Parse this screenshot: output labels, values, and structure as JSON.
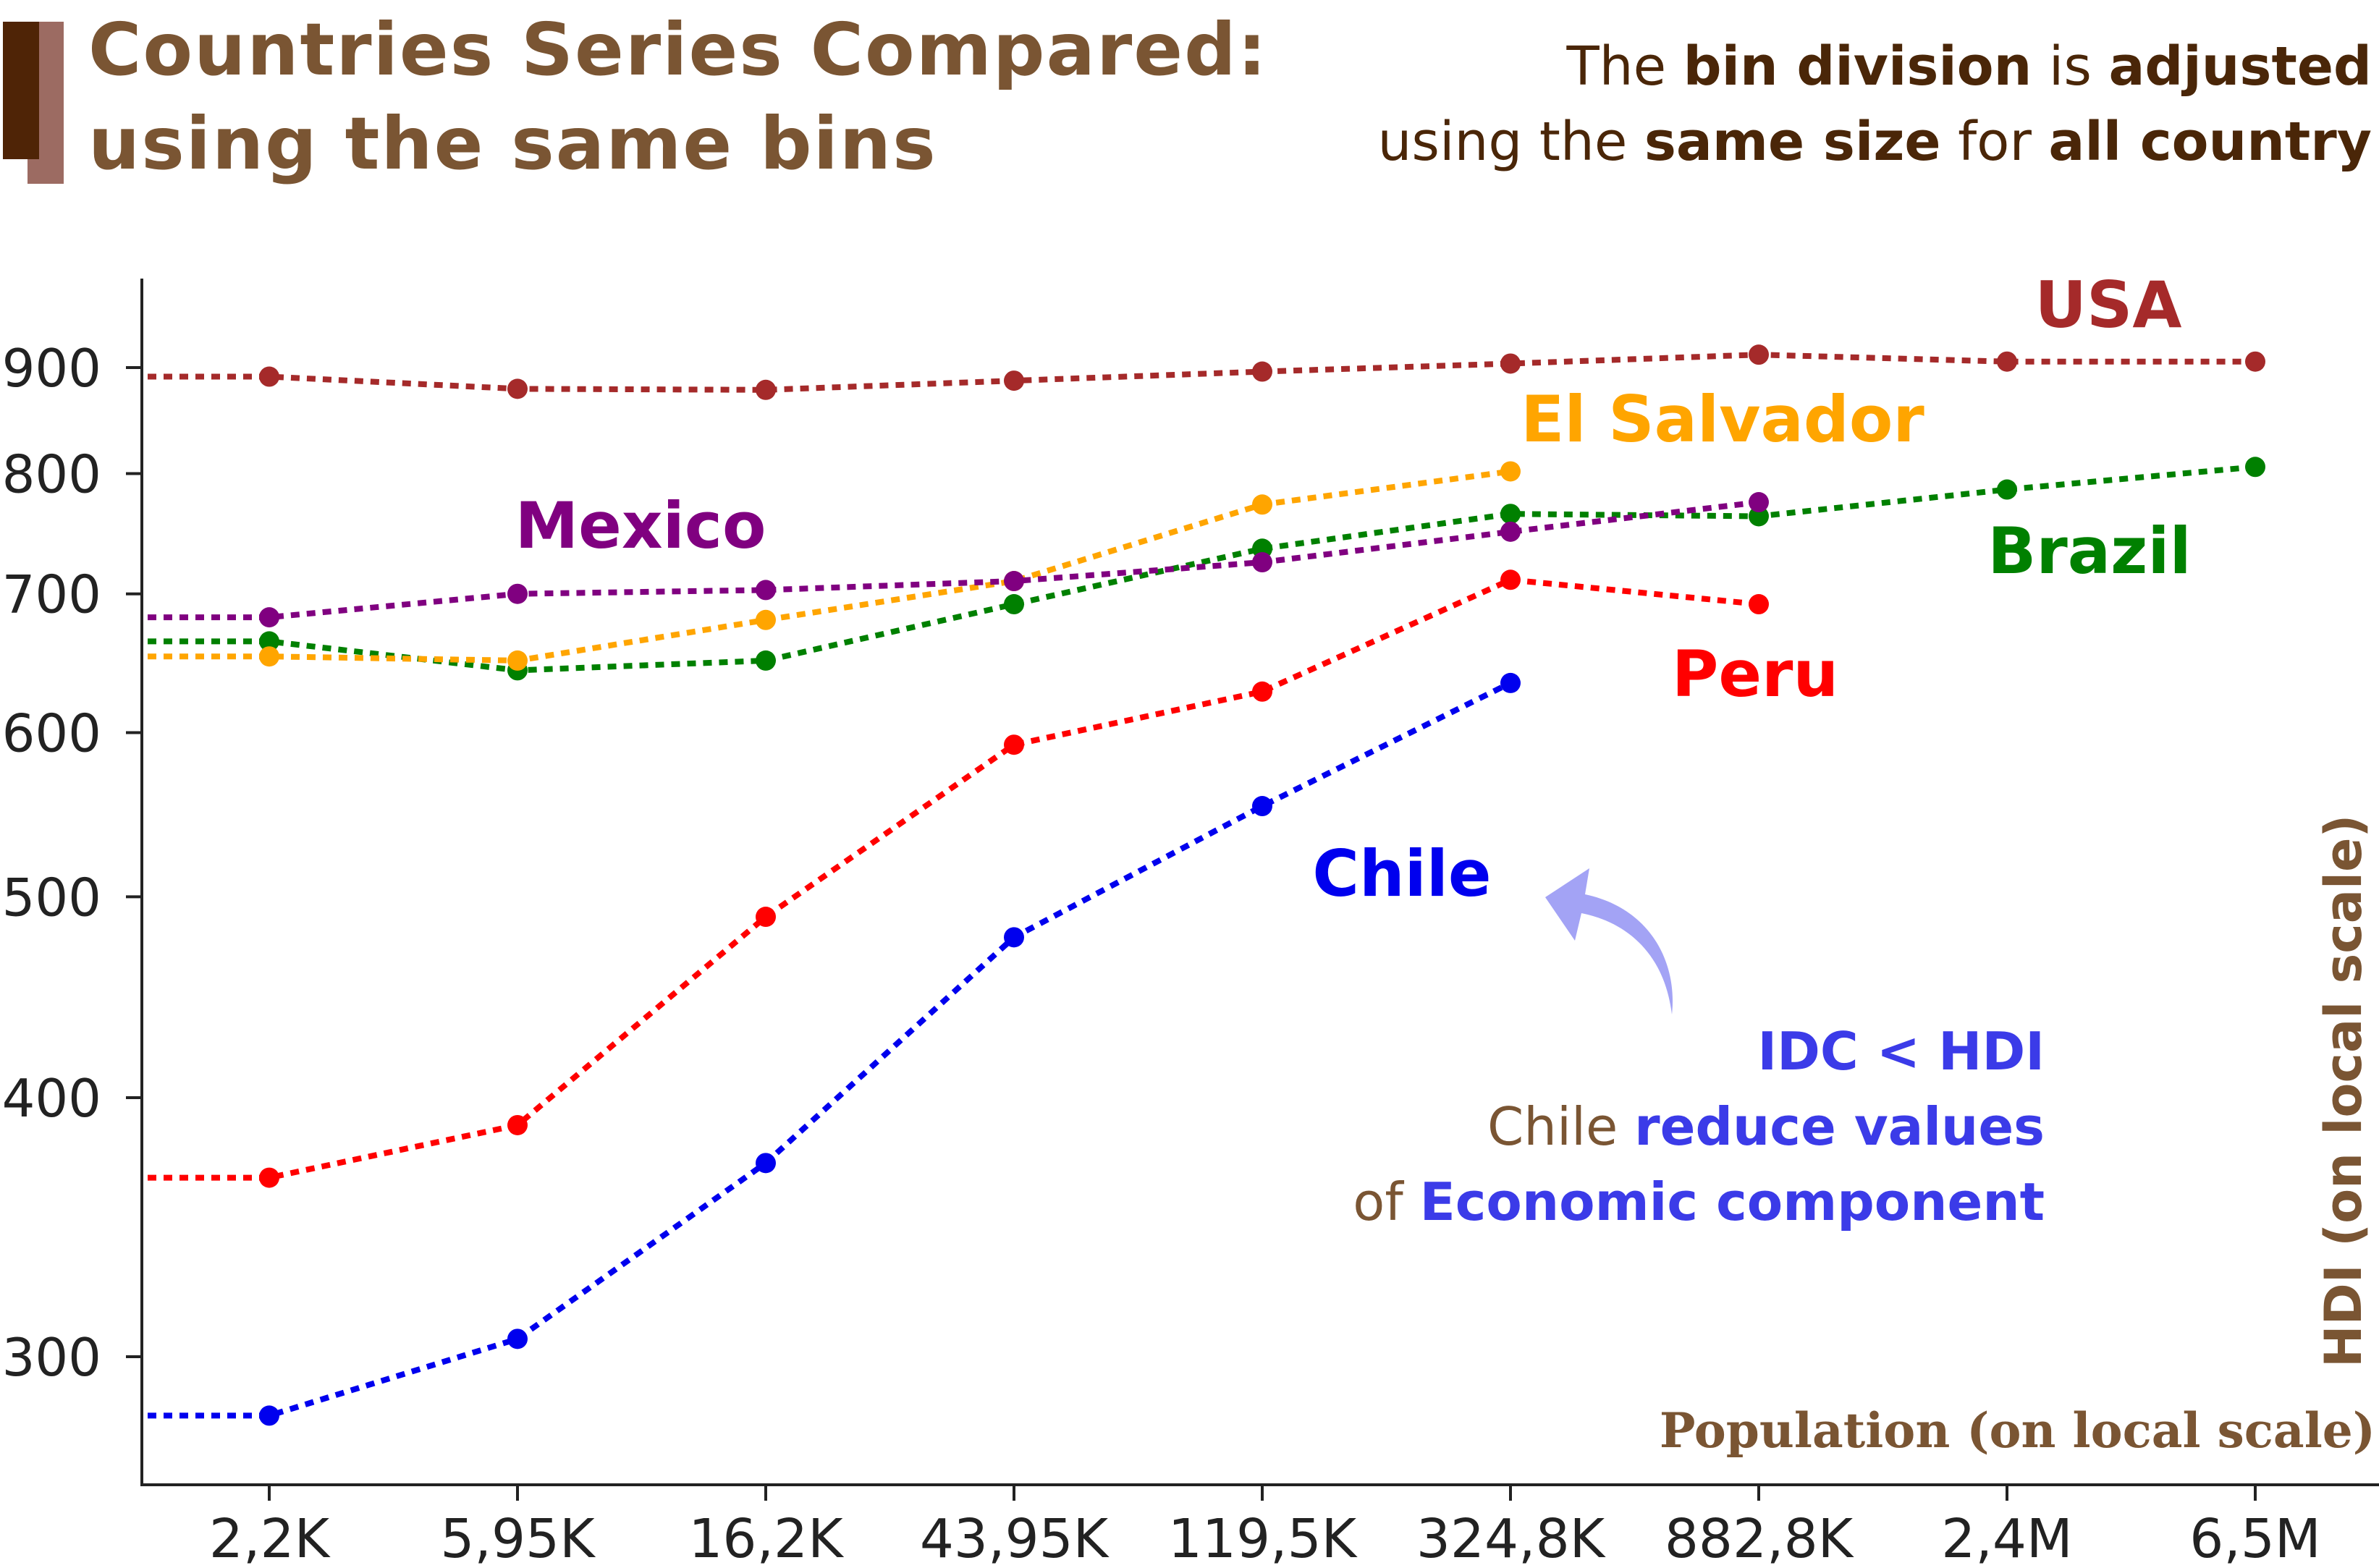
{
  "title": {
    "line1": "Countries Series Compared:",
    "line2": "using the same bins"
  },
  "note": {
    "line1": [
      {
        "text": "The ",
        "bold": false
      },
      {
        "text": "bin division",
        "bold": true
      },
      {
        "text": " is ",
        "bold": false
      },
      {
        "text": "adjusted",
        "bold": true
      }
    ],
    "line2": [
      {
        "text": "using the ",
        "bold": false
      },
      {
        "text": "same size",
        "bold": true
      },
      {
        "text": " for ",
        "bold": false
      },
      {
        "text": "all country",
        "bold": true
      }
    ]
  },
  "annotation": {
    "line1": [
      {
        "text": "IDC < HDI",
        "color": "#3b3be8",
        "bold": true
      }
    ],
    "line2": [
      {
        "text": "Chile ",
        "color": "#7a5533",
        "bold": false
      },
      {
        "text": "reduce values",
        "color": "#3b3be8",
        "bold": true
      }
    ],
    "line3": [
      {
        "text": "of ",
        "color": "#7a5533",
        "bold": false
      },
      {
        "text": "Economic component",
        "color": "#3b3be8",
        "bold": true
      }
    ],
    "arrow_color": "#a3a3f5"
  },
  "chart_data": {
    "type": "line",
    "x_scale": "log",
    "y_scale": "log",
    "categories": [
      "2,2K",
      "5,95K",
      "16,2K",
      "43,95K",
      "119,5K",
      "324,8K",
      "882,8K",
      "2,4M",
      "6,5M"
    ],
    "y_ticks": [
      300,
      400,
      500,
      600,
      700,
      800,
      900
    ],
    "ylim": [
      268,
      1010
    ],
    "xlabel": "Population (on local scale)",
    "ylabel": "HDI (on local scale)",
    "grid": false,
    "series": [
      {
        "name": "USA",
        "color": "#a52a2a",
        "lead": 891,
        "values": [
          891,
          879,
          878,
          887,
          896,
          904,
          913,
          906,
          906
        ]
      },
      {
        "name": "El Salvador",
        "color": "#ffa500",
        "lead": 653,
        "values": [
          653,
          650,
          680,
          710,
          773,
          802,
          null,
          null,
          null
        ]
      },
      {
        "name": "Mexico",
        "color": "#800080",
        "lead": 682,
        "values": [
          682,
          700,
          703,
          710,
          725,
          750,
          775,
          null,
          null
        ]
      },
      {
        "name": "Brazil",
        "color": "#008000",
        "lead": 664,
        "values": [
          664,
          643,
          650,
          692,
          736,
          765,
          763,
          786,
          806
        ]
      },
      {
        "name": "Peru",
        "color": "#ff0000",
        "lead": 366,
        "values": [
          366,
          388,
          489,
          592,
          628,
          711,
          692,
          null,
          null
        ]
      },
      {
        "name": "Chile",
        "color": "#0000ee",
        "lead": 281,
        "values": [
          281,
          306,
          372,
          478,
          553,
          634,
          null,
          null,
          null
        ]
      }
    ]
  }
}
